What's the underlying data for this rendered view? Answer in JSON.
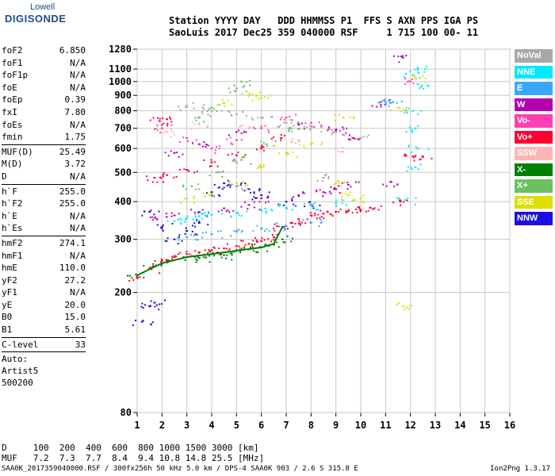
{
  "logo": {
    "top": "Lowell",
    "main": "DIGISONDE"
  },
  "header": {
    "line1": "Station YYYY DAY   DDD HHMMSS P1  FFS S AXN PPS IGA PS",
    "line2": "SaoLuis 2017 Dec25 359 040000 RSF     1 715 100 00- 11"
  },
  "params": [
    {
      "k": "foF2",
      "v": "6.850"
    },
    {
      "k": "foF1",
      "v": "N/A"
    },
    {
      "k": "foF1p",
      "v": "N/A"
    },
    {
      "k": "foE",
      "v": "N/A"
    },
    {
      "k": "foEp",
      "v": "0.39"
    },
    {
      "k": "fxI",
      "v": "7.80"
    },
    {
      "k": "foEs",
      "v": "N/A"
    },
    {
      "k": "fmin",
      "v": "1.75"
    },
    {
      "sep": true
    },
    {
      "k": "MUF(D)",
      "v": "25.49"
    },
    {
      "k": "M(D)",
      "v": "3.72"
    },
    {
      "k": "D",
      "v": "N/A"
    },
    {
      "sep": true
    },
    {
      "k": "h`F",
      "v": "255.0"
    },
    {
      "k": "h`F2",
      "v": "255.0"
    },
    {
      "k": "h`E",
      "v": "N/A"
    },
    {
      "k": "h`Es",
      "v": "N/A"
    },
    {
      "sep": true
    },
    {
      "k": "hmF2",
      "v": "274.1"
    },
    {
      "k": "hmF1",
      "v": "N/A"
    },
    {
      "k": "hmE",
      "v": "110.0"
    },
    {
      "k": "yF2",
      "v": "27.2"
    },
    {
      "k": "yF1",
      "v": "N/A"
    },
    {
      "k": "yE",
      "v": "20.0"
    },
    {
      "k": "B0",
      "v": "15.0"
    },
    {
      "k": "B1",
      "v": "5.61"
    },
    {
      "sep": true
    },
    {
      "k": "C-level",
      "v": "33"
    },
    {
      "sep": true
    }
  ],
  "auto": [
    "Auto:",
    "Artist5",
    "500200"
  ],
  "legend": [
    {
      "label": "NoVal",
      "color": "#a8a8a8"
    },
    {
      "label": "NNE",
      "color": "#00e8ff"
    },
    {
      "label": "E",
      "color": "#3aa7ff"
    },
    {
      "label": "W",
      "color": "#b400b0"
    },
    {
      "label": "Vo-",
      "color": "#ff40b0"
    },
    {
      "label": "Vo+",
      "color": "#ff0030"
    },
    {
      "label": "SSW",
      "color": "#ffb4b4"
    },
    {
      "label": "X-",
      "color": "#008000"
    },
    {
      "label": "X+",
      "color": "#6cc060"
    },
    {
      "label": "SSE",
      "color": "#dede00"
    },
    {
      "label": "NNW",
      "color": "#1a10e0"
    }
  ],
  "footer": {
    "line1": "D     100  200  400  600  800 1000 1500 3000 [km]",
    "line2": "MUF   7.2  7.3  7.7  8.4  9.4 10.8 14.8 25.5 [MHz]",
    "line3": "SAA0K_2017359040000.RSF / 300fx256h 50 kHz 5.0 km / DPS-4 SAA0K 903 / 2.6 S 315.8 E",
    "version": "Ion2Png 1.3.17"
  },
  "chart_data": {
    "type": "scatter",
    "title": "",
    "xlabel": "",
    "ylabel": "",
    "xlim": [
      1,
      16
    ],
    "ylim": [
      80,
      1280
    ],
    "yscale": "log",
    "xticks": [
      1,
      2,
      3,
      4,
      5,
      6,
      7,
      8,
      9,
      10,
      11,
      12,
      13,
      14,
      15,
      16
    ],
    "yticks": [
      80,
      200,
      300,
      400,
      500,
      600,
      700,
      800,
      900,
      1000,
      1100,
      1280
    ],
    "grid": true,
    "trace_color": "#008000",
    "series": [
      {
        "name": "Vo+",
        "color": "#ff0030",
        "points": [
          [
            1.0,
            225
          ],
          [
            1.5,
            240
          ],
          [
            2.0,
            255
          ],
          [
            2.5,
            262
          ],
          [
            3.0,
            268
          ],
          [
            3.5,
            272
          ],
          [
            4.0,
            276
          ],
          [
            4.5,
            280
          ],
          [
            5.0,
            285
          ],
          [
            5.5,
            290
          ],
          [
            6.0,
            296
          ],
          [
            6.5,
            305
          ],
          [
            6.85,
            330
          ],
          [
            7.2,
            340
          ],
          [
            7.5,
            350
          ],
          [
            8.0,
            360
          ],
          [
            8.5,
            365
          ],
          [
            9.0,
            370
          ],
          [
            9.5,
            372
          ],
          [
            10.0,
            375
          ],
          [
            10.5,
            378
          ],
          [
            1.7,
            480
          ],
          [
            2.2,
            490
          ],
          [
            3.0,
            510
          ],
          [
            4.0,
            540
          ],
          [
            5.0,
            570
          ],
          [
            6.0,
            600
          ],
          [
            6.8,
            650
          ],
          [
            1.9,
            740
          ],
          [
            2.2,
            750
          ],
          [
            12.1,
            565
          ],
          [
            12.5,
            565
          ],
          [
            11.6,
            400
          ]
        ]
      },
      {
        "name": "X-",
        "color": "#008000",
        "points": [
          [
            1.0,
            228
          ],
          [
            2.0,
            250
          ],
          [
            3.0,
            262
          ],
          [
            4.0,
            268
          ],
          [
            5.0,
            275
          ],
          [
            6.0,
            282
          ],
          [
            6.5,
            288
          ],
          [
            6.85,
            300
          ],
          [
            3.5,
            260
          ],
          [
            4.5,
            266
          ],
          [
            5.5,
            278
          ]
        ]
      },
      {
        "name": "W",
        "color": "#b400b0",
        "points": [
          [
            1.8,
            350
          ],
          [
            2.5,
            360
          ],
          [
            3.5,
            370
          ],
          [
            4.5,
            380
          ],
          [
            5.5,
            390
          ],
          [
            6.0,
            410
          ],
          [
            7.5,
            420
          ],
          [
            8.5,
            430
          ],
          [
            9.0,
            440
          ],
          [
            9.5,
            455
          ],
          [
            11.2,
            465
          ],
          [
            2.5,
            580
          ],
          [
            3.5,
            620
          ],
          [
            5.0,
            680
          ],
          [
            7.5,
            720
          ],
          [
            9.0,
            690
          ],
          [
            9.7,
            650
          ],
          [
            11.7,
            1200
          ],
          [
            10.8,
            855
          ]
        ]
      },
      {
        "name": "NNW",
        "color": "#1a10e0",
        "points": [
          [
            1.5,
            370
          ],
          [
            2.0,
            330
          ],
          [
            2.5,
            300
          ],
          [
            3.0,
            320
          ],
          [
            3.5,
            340
          ],
          [
            4.0,
            430
          ],
          [
            4.5,
            460
          ],
          [
            5.0,
            450
          ],
          [
            5.5,
            440
          ],
          [
            6.0,
            420
          ],
          [
            7.0,
            400
          ],
          [
            8.0,
            390
          ],
          [
            1.5,
            180
          ],
          [
            1.7,
            185
          ],
          [
            1.2,
            160
          ]
        ]
      },
      {
        "name": "NNE",
        "color": "#00e8ff",
        "points": [
          [
            2.5,
            345
          ],
          [
            3.0,
            352
          ],
          [
            3.5,
            358
          ],
          [
            4.0,
            362
          ],
          [
            5.0,
            368
          ],
          [
            6.0,
            375
          ],
          [
            7.0,
            382
          ],
          [
            8.0,
            388
          ],
          [
            9.0,
            395
          ],
          [
            12.3,
            1110
          ],
          [
            12.1,
            1050
          ],
          [
            12.3,
            980
          ],
          [
            12.1,
            800
          ],
          [
            12.2,
            700
          ],
          [
            12.3,
            600
          ],
          [
            12.2,
            520
          ],
          [
            11.8,
            405
          ]
        ]
      },
      {
        "name": "E",
        "color": "#3aa7ff",
        "points": [
          [
            3.0,
            305
          ],
          [
            4.0,
            312
          ],
          [
            5.0,
            318
          ],
          [
            6.0,
            325
          ],
          [
            7.0,
            332
          ],
          [
            8.0,
            340
          ],
          [
            11.3,
            855
          ],
          [
            11.0,
            855
          ]
        ]
      },
      {
        "name": "SSE",
        "color": "#dede00",
        "points": [
          [
            3.0,
            410
          ],
          [
            4.0,
            425
          ],
          [
            5.0,
            460
          ],
          [
            6.0,
            520
          ],
          [
            7.0,
            580
          ],
          [
            8.0,
            620
          ],
          [
            9.0,
            460
          ],
          [
            9.5,
            420
          ],
          [
            10.0,
            410
          ],
          [
            4.5,
            850
          ],
          [
            5.5,
            900
          ],
          [
            6.0,
            880
          ],
          [
            9.3,
            760
          ],
          [
            12.2,
            1030
          ],
          [
            11.5,
            820
          ],
          [
            11.7,
            180
          ]
        ]
      },
      {
        "name": "X+",
        "color": "#6cc060",
        "points": [
          [
            3.2,
            450
          ],
          [
            4.2,
            500
          ],
          [
            5.2,
            550
          ],
          [
            6.2,
            620
          ],
          [
            7.2,
            700
          ],
          [
            4.0,
            820
          ],
          [
            3.5,
            760
          ],
          [
            5.2,
            1000
          ],
          [
            5.0,
            950
          ]
        ]
      },
      {
        "name": "Vo-",
        "color": "#ff40b0",
        "points": [
          [
            2.0,
            700
          ],
          [
            3.0,
            650
          ],
          [
            4.0,
            600
          ],
          [
            5.0,
            640
          ],
          [
            6.0,
            700
          ],
          [
            7.0,
            760
          ],
          [
            8.0,
            730
          ],
          [
            9.0,
            680
          ],
          [
            12.0,
            1000
          ]
        ]
      },
      {
        "name": "SSW",
        "color": "#ffb4b4",
        "points": [
          [
            2.2,
            680
          ],
          [
            3.5,
            720
          ],
          [
            5.5,
            700
          ],
          [
            7.5,
            640
          ],
          [
            9.0,
            600
          ]
        ]
      },
      {
        "name": "NoVal",
        "color": "#a8a8a8",
        "points": [
          [
            3.0,
            830
          ],
          [
            4.0,
            800
          ],
          [
            5.0,
            780
          ],
          [
            6.0,
            760
          ],
          [
            7.0,
            730
          ],
          [
            8.0,
            700
          ],
          [
            9.0,
            680
          ],
          [
            10.0,
            650
          ],
          [
            5.0,
            450
          ],
          [
            8.5,
            480
          ]
        ]
      }
    ]
  }
}
